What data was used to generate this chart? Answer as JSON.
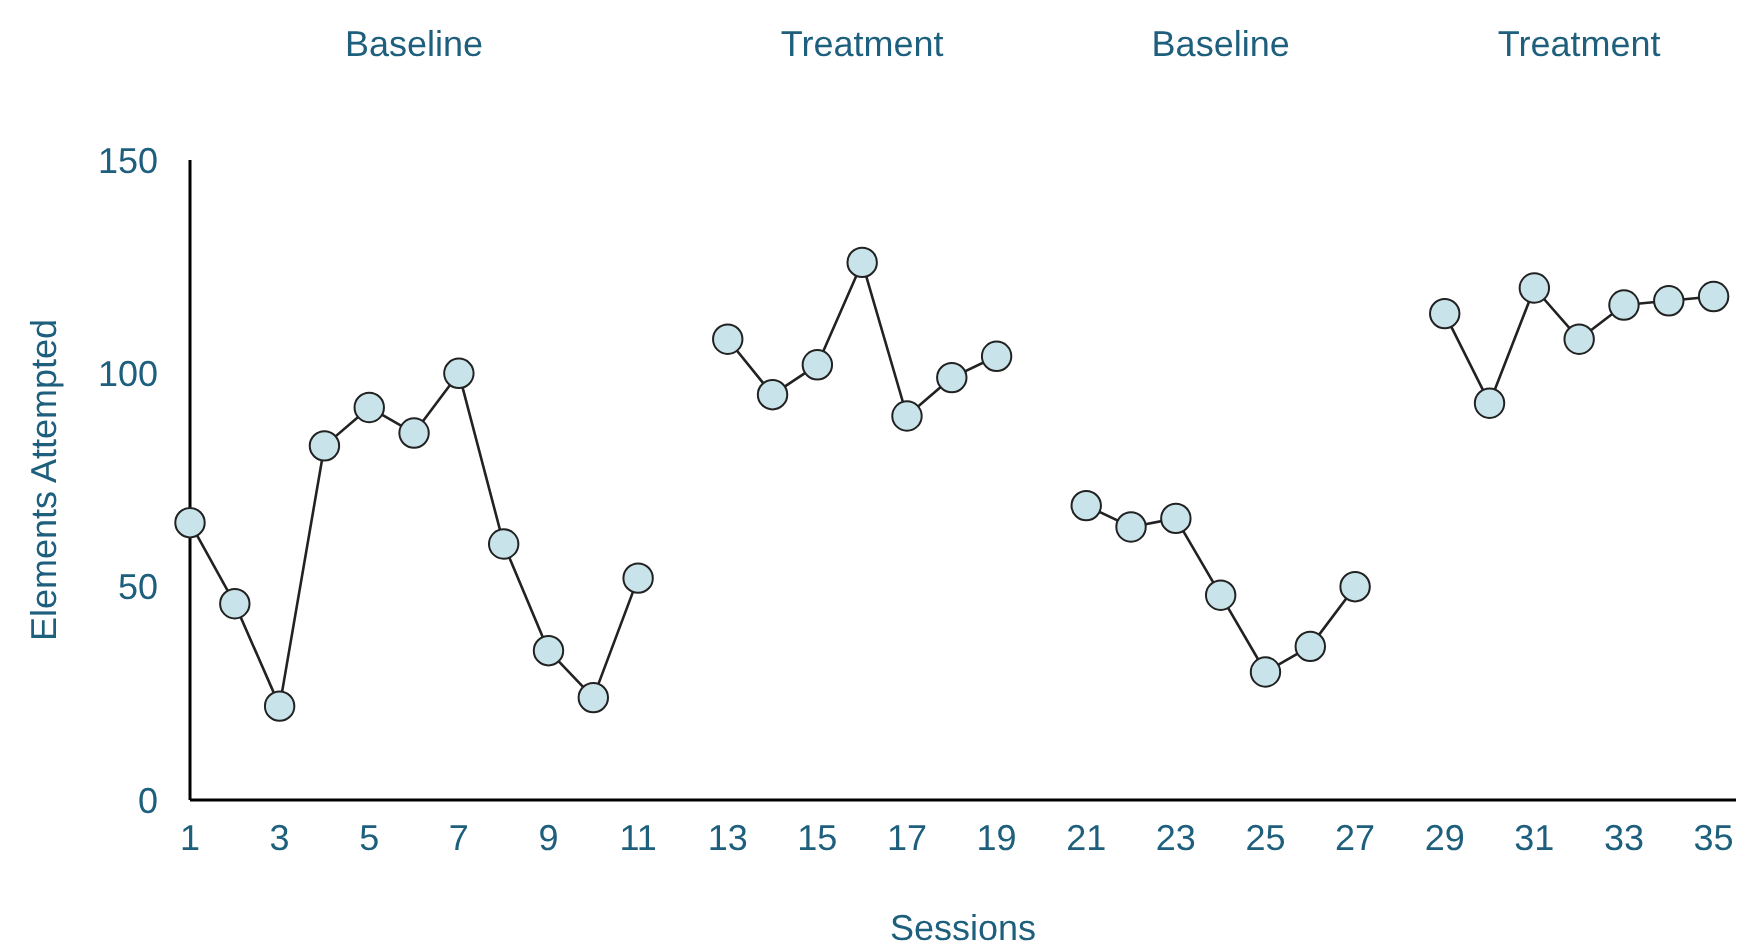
{
  "chart_data": {
    "type": "line",
    "xlabel": "Sessions",
    "ylabel": "Elements Attempted",
    "annotations": [
      "Baseline",
      "Treatment",
      "Baseline",
      "Treatment"
    ],
    "series": [
      {
        "color": "#c8e4ea",
        "x": [
          1,
          2,
          3,
          4,
          5,
          6,
          7,
          8,
          9,
          10,
          11
        ],
        "values": [
          65,
          46,
          22,
          83,
          92,
          86,
          100,
          60,
          35,
          24,
          52
        ]
      },
      {
        "color": "#c8e4ea",
        "x": [
          13,
          14,
          15,
          16,
          17,
          18,
          19
        ],
        "values": [
          108,
          95,
          102,
          126,
          90,
          99,
          104
        ]
      },
      {
        "color": "#c8e4ea",
        "x": [
          21,
          22,
          23,
          24,
          25,
          26,
          27
        ],
        "values": [
          69,
          64,
          66,
          48,
          30,
          36,
          50
        ]
      },
      {
        "color": "#c8e4ea",
        "x": [
          29,
          30,
          31,
          32,
          33,
          34,
          35
        ],
        "values": [
          114,
          93,
          120,
          108,
          116,
          117,
          118
        ]
      }
    ],
    "xlim": [
      1,
      35.5
    ],
    "xticks": [
      1,
      3,
      5,
      7,
      9,
      11,
      13,
      15,
      17,
      19,
      21,
      23,
      25,
      27,
      29,
      31,
      33,
      35
    ],
    "ylim": [
      0,
      150
    ],
    "yticks": [
      0,
      50,
      100,
      150
    ],
    "marker": "circle",
    "line_style": "solid"
  }
}
